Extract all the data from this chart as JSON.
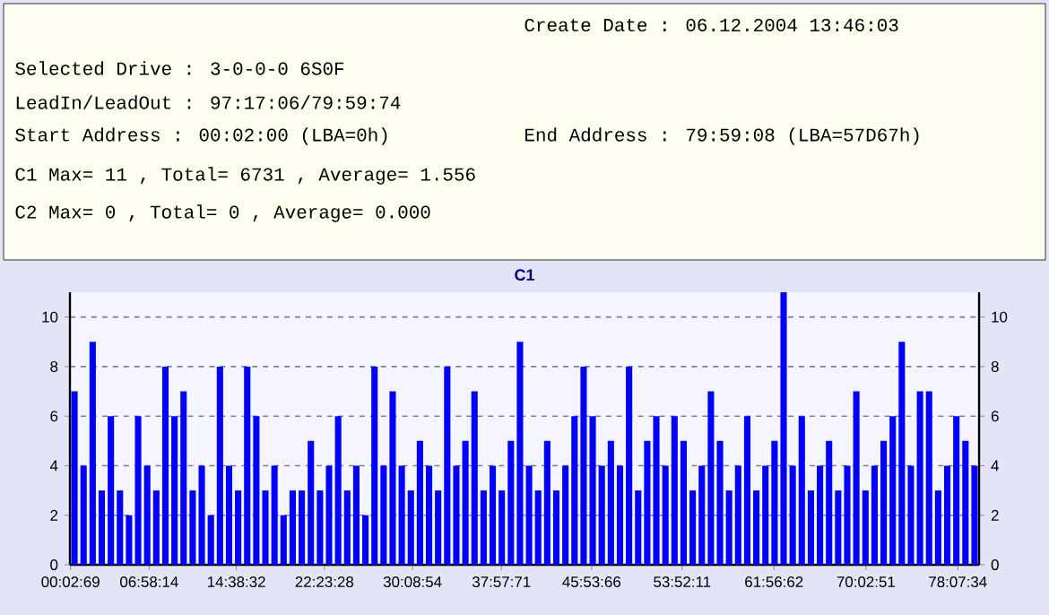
{
  "chart_data": {
    "type": "bar",
    "title": "C1",
    "annotations": [
      "Create Date    : 06.12.2004 13:46:03",
      "Selected Drive : 3-0-0-0 6S0F",
      "LeadIn/LeadOut : 97:17:06/79:59:74",
      "Start Address  : 00:02:00 (LBA=0h)",
      "End Address    : 79:59:08 (LBA=57D67h)",
      "C1 Max= 11 , Total= 6731 , Average= 1.556",
      "C2 Max= 0 , Total= 0 , Average= 0.000"
    ],
    "x": [
      0.4,
      1.2,
      2.0,
      2.8,
      3.6,
      4.4,
      5.2,
      6.0,
      6.8,
      7.6,
      8.4,
      9.2,
      10.0,
      10.8,
      11.6,
      12.4,
      13.2,
      14.0,
      14.8,
      15.6,
      16.4,
      17.2,
      18.0,
      18.8,
      19.6,
      20.4,
      21.2,
      22.0,
      22.8,
      23.6,
      24.4,
      25.2,
      26.0,
      26.8,
      27.6,
      28.4,
      29.2,
      30.0,
      30.8,
      31.6,
      32.4,
      33.2,
      34.0,
      34.8,
      35.6,
      36.4,
      37.2,
      38.0,
      38.8,
      39.6,
      40.4,
      41.2,
      42.0,
      42.8,
      43.6,
      44.4,
      45.2,
      46.0,
      46.8,
      47.6,
      48.4,
      49.2,
      50.0,
      50.8,
      51.6,
      52.4,
      53.2,
      54.0,
      54.8,
      55.6,
      56.4,
      57.2,
      58.0,
      58.8,
      59.6,
      60.4,
      61.2,
      62.0,
      62.8,
      63.6,
      64.4,
      65.2,
      66.0,
      66.8,
      67.6,
      68.4,
      69.2,
      70.0,
      70.8,
      71.6,
      72.4,
      73.2,
      74.0,
      74.8,
      75.6,
      76.4,
      77.2,
      78.0,
      78.8,
      79.6
    ],
    "values": [
      7,
      4,
      9,
      3,
      6,
      3,
      2,
      6,
      4,
      3,
      8,
      6,
      7,
      3,
      4,
      2,
      8,
      4,
      3,
      8,
      6,
      3,
      4,
      2,
      3,
      3,
      5,
      3,
      4,
      6,
      3,
      4,
      2,
      8,
      4,
      7,
      4,
      3,
      5,
      4,
      3,
      8,
      4,
      5,
      7,
      3,
      4,
      3,
      5,
      9,
      4,
      3,
      5,
      3,
      4,
      6,
      8,
      6,
      4,
      5,
      4,
      8,
      3,
      5,
      6,
      4,
      6,
      5,
      3,
      4,
      7,
      5,
      3,
      4,
      6,
      3,
      4,
      5,
      11,
      4,
      6,
      3,
      4,
      5,
      3,
      4,
      7,
      3,
      4,
      5,
      6,
      9,
      4,
      7,
      7,
      3,
      4,
      6,
      5,
      4
    ],
    "color": "#0000ff",
    "xlim": [
      0,
      80
    ],
    "ylim": [
      0,
      11
    ],
    "xticks": [
      {
        "value": 0.0525,
        "label": "00:02:69"
      },
      {
        "value": 6.9706,
        "label": "06:58:14"
      },
      {
        "value": 14.6422,
        "label": "14:38:32"
      },
      {
        "value": 22.3911,
        "label": "22:23:28"
      },
      {
        "value": 30.1483,
        "label": "30:08:54"
      },
      {
        "value": 37.9697,
        "label": "37:57:71"
      },
      {
        "value": 45.9017,
        "label": "45:53:66"
      },
      {
        "value": 53.8697,
        "label": "53:52:11"
      },
      {
        "value": 61.9506,
        "label": "61:56:62"
      },
      {
        "value": 70.0475,
        "label": "70:02:51"
      },
      {
        "value": 78.1261,
        "label": "78:07:34"
      }
    ],
    "yticks": [
      0,
      2,
      4,
      6,
      8,
      10
    ],
    "y2lim": [
      0,
      11
    ],
    "y2ticks": [
      0,
      2,
      4,
      6,
      8,
      10
    ],
    "grid": "y",
    "line_style": "dashed"
  }
}
